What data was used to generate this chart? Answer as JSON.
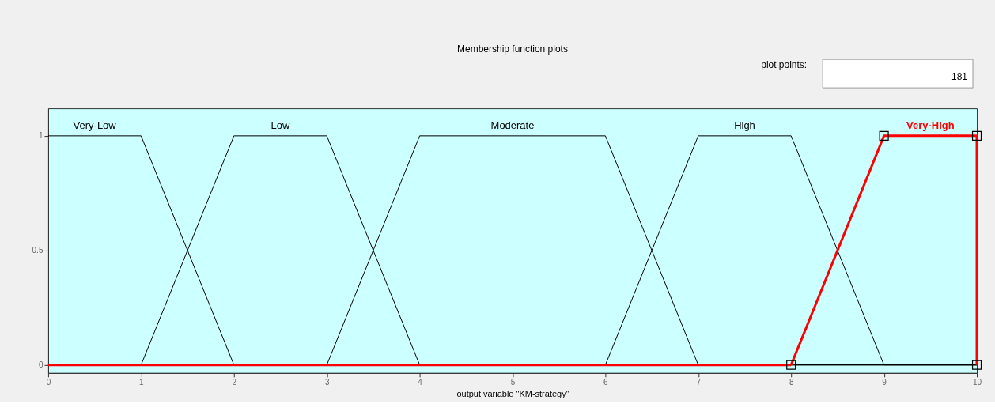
{
  "chart_data": {
    "type": "line",
    "title": "Membership function plots",
    "xlabel": "output variable \"KM-strategy\"",
    "annotations": [
      "plot points:",
      "181"
    ],
    "xlim": [
      0,
      10
    ],
    "xticks": [
      0,
      1,
      2,
      3,
      4,
      5,
      6,
      7,
      8,
      9,
      10
    ],
    "ylim": [
      -0.035,
      1.12
    ],
    "yticks": [
      0,
      0.5,
      1
    ],
    "grid": false,
    "series": [
      {
        "name": "Very-Low",
        "color": "#000000",
        "x": [
          0,
          1,
          2,
          10
        ],
        "values": [
          1,
          1,
          0,
          0
        ]
      },
      {
        "name": "Low",
        "color": "#000000",
        "x": [
          0,
          1,
          2,
          3,
          4,
          10
        ],
        "values": [
          0,
          0,
          1,
          1,
          0,
          0
        ]
      },
      {
        "name": "Moderate",
        "color": "#000000",
        "x": [
          0,
          3,
          4,
          6,
          7,
          10
        ],
        "values": [
          0,
          0,
          1,
          1,
          0,
          0
        ]
      },
      {
        "name": "High",
        "color": "#000000",
        "x": [
          0,
          6,
          7,
          8,
          9,
          10
        ],
        "values": [
          0,
          0,
          1,
          1,
          0,
          0
        ]
      },
      {
        "color": "#ff0000",
        "x": [
          0,
          8
        ],
        "values": [
          0,
          0
        ]
      },
      {
        "name": "Very-High",
        "color": "#ff0000",
        "x": [
          8,
          9,
          10,
          10
        ],
        "values": [
          0,
          1,
          1,
          0
        ],
        "marker": "square"
      }
    ]
  }
}
